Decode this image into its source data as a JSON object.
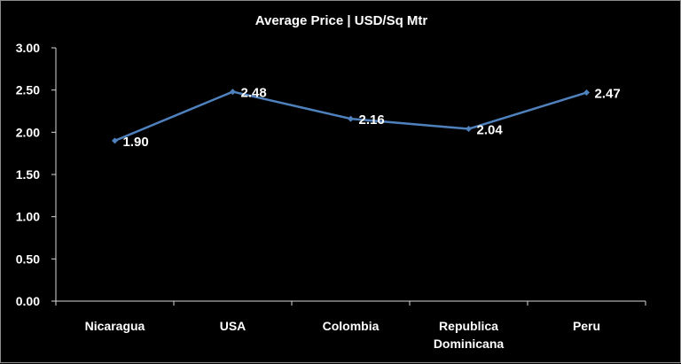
{
  "chart_data": {
    "type": "line",
    "title": "Average Price | USD/Sq Mtr",
    "categories": [
      "Nicaragua",
      "USA",
      "Colombia",
      "Republica Dominicana",
      "Peru"
    ],
    "category_lines": [
      [
        "Nicaragua"
      ],
      [
        "USA"
      ],
      [
        "Colombia"
      ],
      [
        "Republica",
        "Dominicana"
      ],
      [
        "Peru"
      ]
    ],
    "values": [
      1.9,
      2.48,
      2.16,
      2.04,
      2.47
    ],
    "value_labels": [
      "1.90",
      "2.48",
      "2.16",
      "2.04",
      "2.47"
    ],
    "ylim": [
      0,
      3
    ],
    "yticks": [
      "0.00",
      "0.50",
      "1.00",
      "1.50",
      "2.00",
      "2.50",
      "3.00"
    ],
    "xlabel": "",
    "ylabel": "",
    "grid": false,
    "legend": "none",
    "line_color": "#4f81bd",
    "text_color": "#ffffff",
    "axis_color": "#d9d9d9",
    "background": "#000000"
  }
}
